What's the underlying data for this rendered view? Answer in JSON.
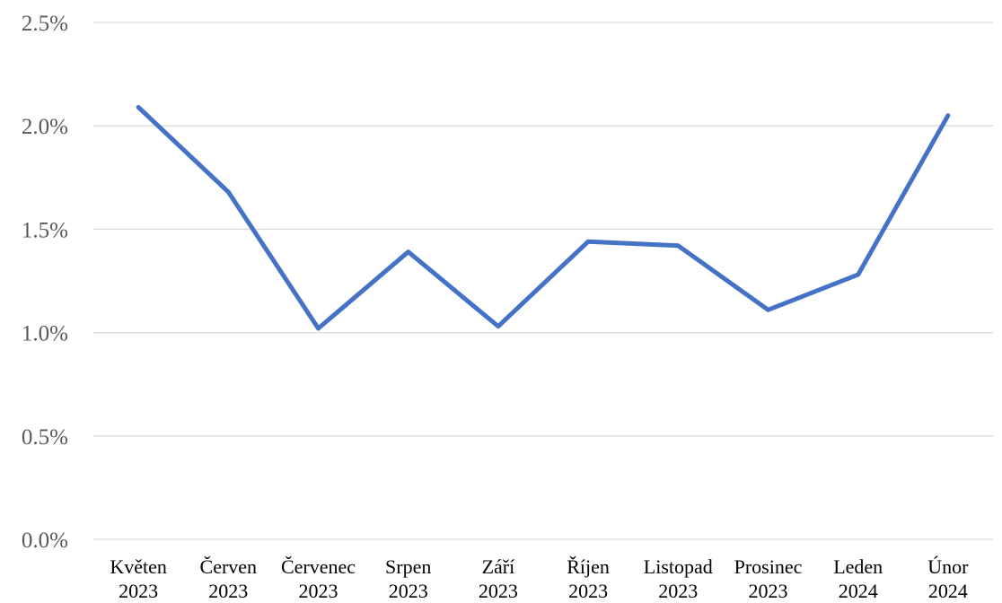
{
  "chart_data": {
    "type": "line",
    "title": "",
    "xlabel": "",
    "ylabel": "",
    "categories": [
      [
        "Květen",
        "2023"
      ],
      [
        "Červen",
        "2023"
      ],
      [
        "Červenec",
        "2023"
      ],
      [
        "Srpen",
        "2023"
      ],
      [
        "Září",
        "2023"
      ],
      [
        "Říjen",
        "2023"
      ],
      [
        "Listopad",
        "2023"
      ],
      [
        "Prosinec",
        "2023"
      ],
      [
        "Leden",
        "2024"
      ],
      [
        "Únor",
        "2024"
      ]
    ],
    "series": [
      {
        "values": [
          2.09,
          1.68,
          1.02,
          1.39,
          1.03,
          1.44,
          1.42,
          1.11,
          1.28,
          2.05
        ],
        "color": "#4472c4"
      }
    ],
    "ylim": [
      0,
      2.5
    ],
    "y_ticks": [
      0,
      0.5,
      1.0,
      1.5,
      2.0,
      2.5
    ],
    "y_tick_labels": [
      "0.0%",
      "0.5%",
      "1.0%",
      "1.5%",
      "2.0%",
      "2.5%"
    ],
    "grid": true,
    "legend": "none",
    "colors": {
      "grid": "#d9d9d9",
      "axis_text": "#595959",
      "category_text": "#000000"
    }
  }
}
